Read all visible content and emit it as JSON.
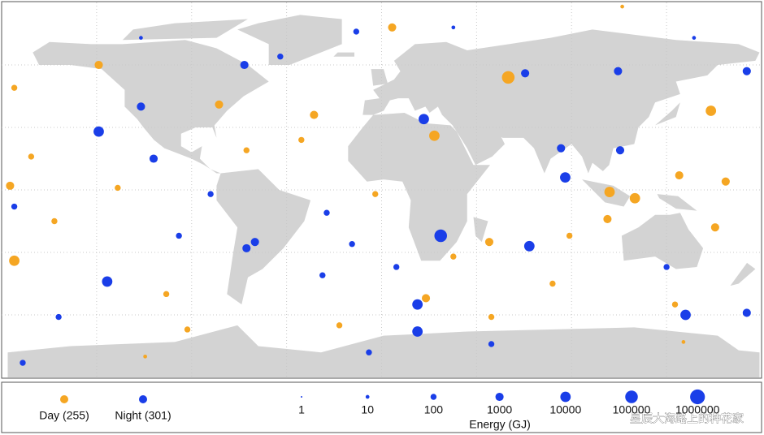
{
  "chart_data": {
    "type": "bubble_map",
    "series": [
      {
        "name": "Day",
        "legend_label": "Day (255)",
        "color": "#f5a623",
        "lon": [
          60,
          156,
          120,
          25,
          -174,
          -176,
          -77,
          -32,
          5,
          108,
          -134,
          51,
          107,
          158,
          141,
          -92,
          -20,
          81,
          -155,
          -166,
          -174,
          -38,
          -3,
          34,
          163,
          -112,
          -64,
          89,
          114,
          139,
          52,
          -125,
          -102,
          143,
          21
        ],
        "lat": [
          54,
          38,
          -4,
          26,
          -34,
          2,
          41,
          36,
          78,
          -1,
          60,
          -25,
          -14,
          -18,
          7,
          -67,
          -65,
          -45,
          -15,
          16,
          49,
          24,
          -2,
          -32,
          4,
          -80,
          19,
          -22,
          88,
          -55,
          -61,
          1,
          -50,
          -73,
          -52
        ],
        "energy": [
          100000,
          10000,
          10000,
          10000,
          10000,
          1000,
          1000,
          1000,
          1000,
          10000,
          1000,
          1000,
          1000,
          1000,
          1000,
          100,
          100,
          100,
          100,
          100,
          100,
          100,
          100,
          100,
          1000,
          10,
          100,
          100,
          10,
          100,
          100,
          100,
          100,
          10,
          1000
        ]
      },
      {
        "name": "Night",
        "legend_label": "Night (301)",
        "color": "#1a3ee8",
        "lon": [
          28,
          20,
          -134,
          -130,
          70,
          -65,
          -114,
          17,
          17,
          87,
          -12,
          173,
          144,
          68,
          -64,
          -60,
          85,
          113,
          -108,
          -153,
          -6,
          -170,
          -48,
          -114,
          135,
          173,
          -26,
          -28,
          34,
          -174,
          -81,
          148,
          112,
          7,
          52,
          -96,
          -14
        ],
        "lat": [
          -22,
          34,
          28,
          -44,
          -27,
          60,
          40,
          -55,
          -68,
          6,
          76,
          57,
          -60,
          56,
          -28,
          -25,
          20,
          19,
          15,
          -61,
          -78,
          -83,
          64,
          73,
          -37,
          -59,
          -11,
          -41,
          78,
          -8,
          -2,
          73,
          57,
          -37,
          -74,
          -22,
          -26
        ],
        "energy": [
          100000,
          10000,
          10000,
          10000,
          10000,
          1000,
          1000,
          10000,
          10000,
          10000,
          100,
          1000,
          10000,
          1000,
          1000,
          1000,
          1000,
          1000,
          1000,
          100,
          100,
          100,
          100,
          10,
          100,
          1000,
          100,
          100,
          10,
          100,
          100,
          10,
          1000,
          100,
          100,
          100,
          100
        ]
      }
    ],
    "size_legend": {
      "title": "Energy (GJ)",
      "values": [
        1,
        10,
        100,
        1000,
        10000,
        100000,
        1000000
      ],
      "color": "#1a3ee8"
    },
    "xlim": [
      -180,
      180
    ],
    "ylim": [
      -90,
      90
    ],
    "grid": true
  },
  "watermark": "星辰大海路上的种花家"
}
